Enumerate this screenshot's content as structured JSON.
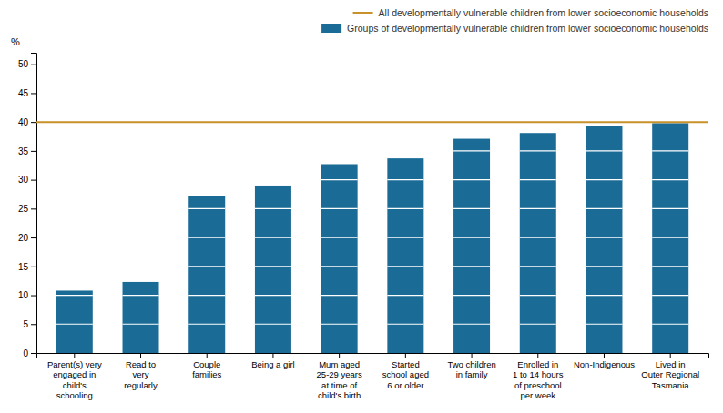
{
  "chart_data": {
    "type": "bar",
    "categories": [
      "Parent(s) very\nengaged in\nchild's\nschooling",
      "Read to\nvery\nregularly",
      "Couple\nfamilies",
      "Being a girl",
      "Mum aged\n25-29 years\nat time of\nchild's birth",
      "Started\nschool aged\n6 or older",
      "Two children\nin family",
      "Enrolled in\n1 to 14 hours\nof preschool\nper week",
      "Non-Indigenous",
      "Lived in\nOuter Regional\nTasmania"
    ],
    "series": [
      {
        "name": "Groups of developmentally vulnerable children from lower socioeconomic households",
        "color": "#1a6b96",
        "values": [
          10.8,
          12.3,
          27.2,
          29.0,
          32.7,
          33.7,
          37.1,
          38.1,
          39.3,
          39.8
        ]
      }
    ],
    "reference_line": {
      "name": "All developmentally vulnerable children from lower socioeconomic households",
      "color": "#c8922a",
      "value": 40.0
    },
    "y_label": "%",
    "ylim": [
      0,
      52
    ],
    "yticks": [
      0,
      5,
      10,
      15,
      20,
      25,
      30,
      35,
      40,
      45,
      50
    ],
    "grid": false,
    "legend": "upper right"
  }
}
